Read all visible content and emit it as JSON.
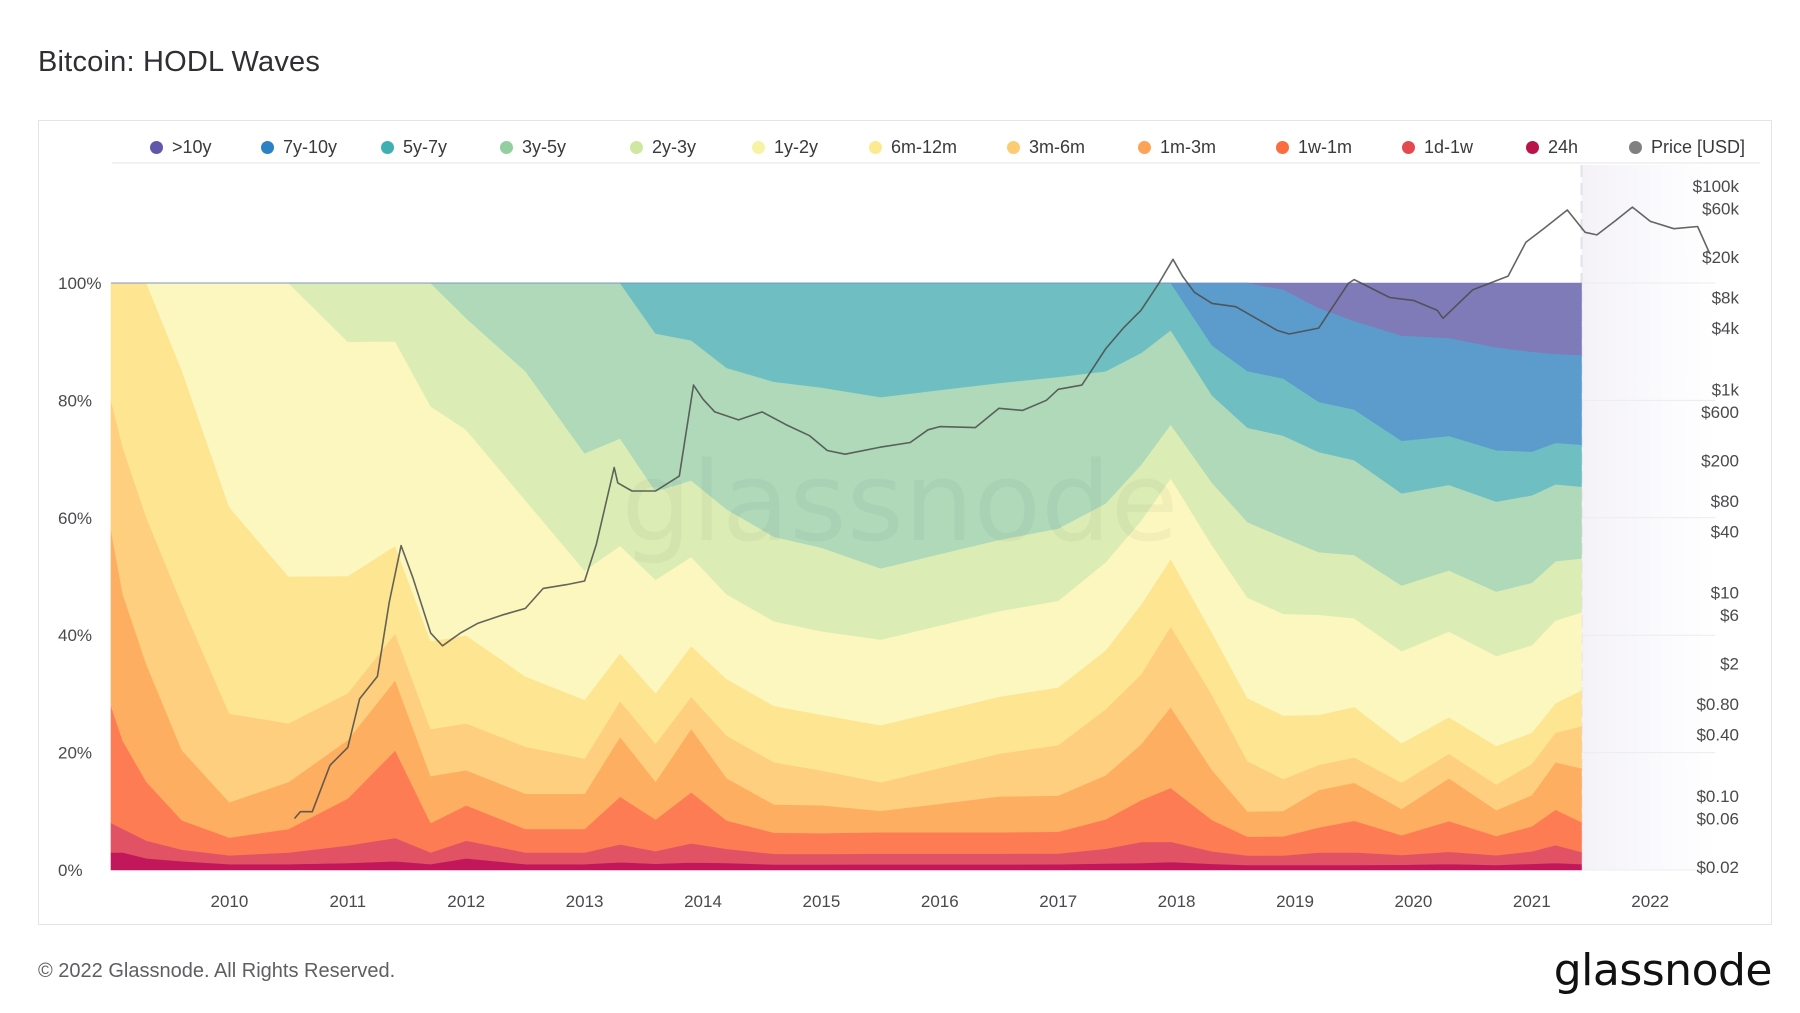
{
  "page": {
    "title": "Bitcoin: HODL Waves",
    "copyright": "© 2022 Glassnode. All Rights Reserved.",
    "brand": "glassnode",
    "watermark": "glassnode"
  },
  "chart_data": {
    "type": "area",
    "stacked": true,
    "normalized": true,
    "title": "Bitcoin: HODL Waves",
    "xlabel": "",
    "ylabel": "",
    "y2label": "Price [USD]",
    "x_ticks": [
      "2010",
      "2011",
      "2012",
      "2013",
      "2014",
      "2015",
      "2016",
      "2017",
      "2018",
      "2019",
      "2020",
      "2021",
      "2022"
    ],
    "x_range": [
      2009.0,
      2022.55
    ],
    "y_ticks": [
      "0%",
      "20%",
      "40%",
      "60%",
      "80%",
      "100%"
    ],
    "y_range": [
      0,
      100
    ],
    "y2_ticks": [
      "$0.02",
      "$0.06",
      "$0.10",
      "$0.40",
      "$0.80",
      "$2",
      "$6",
      "$10",
      "$40",
      "$80",
      "$200",
      "$600",
      "$1k",
      "$4k",
      "$8k",
      "$20k",
      "$60k",
      "$100k"
    ],
    "y2_scale": "log",
    "y2_range": [
      0.02,
      100000
    ],
    "legend_position": "top",
    "grid": true,
    "data_end_x": 2021.42,
    "x": [
      2009.0,
      2009.1,
      2009.3,
      2009.6,
      2010.0,
      2010.5,
      2011.0,
      2011.4,
      2011.7,
      2012.0,
      2012.5,
      2013.0,
      2013.3,
      2013.6,
      2013.9,
      2014.2,
      2014.6,
      2015.0,
      2015.5,
      2016.0,
      2016.5,
      2017.0,
      2017.4,
      2017.7,
      2017.95,
      2018.3,
      2018.6,
      2018.9,
      2019.2,
      2019.5,
      2019.9,
      2020.3,
      2020.7,
      2021.0,
      2021.2,
      2021.42
    ],
    "series": [
      {
        "name": "24h",
        "color": "#c2185b",
        "values": [
          3,
          3,
          2,
          1.5,
          1,
          1,
          1.2,
          1.5,
          1,
          2,
          1,
          1,
          1.3,
          1,
          1.2,
          1,
          0.8,
          0.8,
          0.8,
          0.8,
          0.8,
          0.8,
          0.9,
          1,
          1.2,
          1,
          0.8,
          0.8,
          0.8,
          0.8,
          0.8,
          1,
          0.8,
          1,
          1.2,
          1
        ]
      },
      {
        "name": "1d-1w",
        "color": "#e15364",
        "values": [
          5,
          4,
          3,
          2,
          1.5,
          2,
          3,
          4,
          2,
          3,
          2,
          2,
          3,
          2,
          3,
          2,
          1.5,
          1.5,
          1.5,
          1.5,
          1.5,
          1.5,
          2,
          3,
          3,
          2,
          1.5,
          1.5,
          2,
          2,
          1.5,
          2,
          1.5,
          2,
          3,
          2
        ]
      },
      {
        "name": "1w-1m",
        "color": "#fd7c54",
        "values": [
          20,
          15,
          10,
          5,
          3,
          4,
          8,
          15,
          5,
          6,
          4,
          4,
          8,
          5,
          8,
          4,
          3,
          3,
          3,
          3,
          3,
          3,
          4,
          6,
          8,
          5,
          3,
          3,
          4,
          5,
          3,
          5,
          3,
          4,
          6,
          5
        ]
      },
      {
        "name": "1m-3m",
        "color": "#fdae61",
        "values": [
          30,
          25,
          20,
          12,
          6,
          8,
          10,
          12,
          8,
          6,
          6,
          6,
          10,
          6,
          10,
          6,
          4,
          4,
          3,
          4,
          5,
          5,
          6,
          8,
          12,
          8,
          4,
          4,
          6,
          6,
          4,
          7,
          4,
          5,
          8,
          9
        ]
      },
      {
        "name": "3m-6m",
        "color": "#fdcf7e",
        "values": [
          22,
          25,
          25,
          25,
          15,
          10,
          8,
          8,
          8,
          8,
          8,
          6,
          6,
          6,
          5,
          6,
          6,
          5,
          4,
          5,
          6,
          7,
          9,
          10,
          12,
          12,
          8,
          5,
          4,
          4,
          4,
          4,
          4,
          5,
          5,
          7
        ]
      },
      {
        "name": "6m-12m",
        "color": "#fee591",
        "values": [
          20,
          28,
          40,
          40,
          35,
          25,
          20,
          15,
          15,
          15,
          12,
          10,
          8,
          8,
          8,
          8,
          8,
          8,
          8,
          8,
          8,
          8,
          8,
          10,
          10,
          10,
          10,
          10,
          8,
          8,
          6,
          6,
          6,
          5,
          5,
          6
        ]
      },
      {
        "name": "1y-2y",
        "color": "#fbf7be",
        "values": [
          0,
          0,
          0,
          15,
          38,
          50,
          40,
          35,
          40,
          35,
          30,
          22,
          18,
          18,
          14,
          12,
          12,
          12,
          12,
          12,
          12,
          12,
          12,
          12,
          12,
          14,
          16,
          16,
          16,
          14,
          14,
          14,
          14,
          14,
          14,
          13
        ]
      },
      {
        "name": "2y-3y",
        "color": "#dbedb5",
        "values": [
          0,
          0,
          0,
          0,
          0,
          0,
          10,
          10,
          21,
          19,
          22,
          20,
          18,
          14,
          12,
          12,
          12,
          12,
          10,
          10,
          10,
          10,
          8,
          8,
          8,
          10,
          12,
          12,
          10,
          10,
          10,
          10,
          10,
          10,
          10,
          9
        ]
      },
      {
        "name": "3y-5y",
        "color": "#b0d9ba",
        "values": [
          0,
          0,
          0,
          0,
          0,
          0,
          0,
          0,
          0,
          6,
          15,
          29,
          26,
          25,
          22,
          20,
          22,
          23,
          24,
          23,
          22,
          21,
          18,
          16,
          14,
          14,
          15,
          16,
          16,
          15,
          14,
          14,
          14,
          14,
          13,
          12
        ]
      },
      {
        "name": "5y-7y",
        "color": "#6fbfc2",
        "values": [
          0,
          0,
          0,
          0,
          0,
          0,
          0,
          0,
          0,
          0,
          0,
          0,
          0,
          8,
          9,
          12,
          14,
          15,
          16,
          15,
          14,
          13,
          12,
          10,
          7,
          8,
          9,
          9,
          8,
          8,
          8,
          8,
          8,
          7,
          7,
          7
        ]
      },
      {
        "name": "7y-10y",
        "color": "#5c9ccd",
        "values": [
          0,
          0,
          0,
          0,
          0,
          0,
          0,
          0,
          0,
          0,
          0,
          0,
          0,
          0,
          0,
          0,
          0,
          0,
          0,
          0,
          0,
          0,
          0,
          0,
          0,
          10,
          14,
          14,
          15,
          14,
          16,
          16,
          16,
          16,
          15,
          15
        ]
      },
      {
        "name": "Price [USD]",
        "color": "#6e6e72",
        "axis": "right",
        "type": "line",
        "x": [
          2010.55,
          2010.6,
          2010.7,
          2010.85,
          2011.0,
          2011.1,
          2011.25,
          2011.35,
          2011.45,
          2011.55,
          2011.7,
          2011.8,
          2011.95,
          2012.1,
          2012.3,
          2012.5,
          2012.65,
          2012.85,
          2013.0,
          2013.1,
          2013.25,
          2013.28,
          2013.4,
          2013.6,
          2013.8,
          2013.92,
          2014.0,
          2014.1,
          2014.3,
          2014.5,
          2014.7,
          2014.9,
          2015.05,
          2015.2,
          2015.5,
          2015.75,
          2015.9,
          2016.0,
          2016.3,
          2016.5,
          2016.7,
          2016.9,
          2017.0,
          2017.2,
          2017.4,
          2017.55,
          2017.7,
          2017.85,
          2017.97,
          2018.05,
          2018.15,
          2018.3,
          2018.5,
          2018.85,
          2018.95,
          2019.2,
          2019.45,
          2019.5,
          2019.8,
          2020.0,
          2020.2,
          2020.25,
          2020.5,
          2020.8,
          2020.95,
          2021.1,
          2021.3,
          2021.45,
          2021.55,
          2021.7,
          2021.85,
          2022.0,
          2022.2,
          2022.4,
          2022.5
        ],
        "values": [
          0.06,
          0.07,
          0.07,
          0.2,
          0.3,
          0.9,
          1.5,
          8,
          29,
          14,
          4,
          3,
          4,
          5,
          6,
          7,
          11,
          12,
          13,
          30,
          170,
          120,
          100,
          100,
          140,
          1100,
          800,
          600,
          500,
          600,
          450,
          350,
          250,
          230,
          270,
          300,
          400,
          430,
          420,
          650,
          620,
          780,
          1000,
          1100,
          2500,
          4000,
          6000,
          11000,
          19000,
          13000,
          9000,
          7000,
          6500,
          3800,
          3500,
          4000,
          11000,
          12000,
          8000,
          7500,
          6000,
          5000,
          9500,
          13000,
          28000,
          38000,
          58000,
          35000,
          33000,
          45000,
          62000,
          45000,
          38000,
          40000,
          22000
        ]
      },
      {
        "name": ">10y",
        "color": "#7f7bb9",
        "values": [
          0,
          0,
          0,
          0,
          0,
          0,
          0,
          0,
          0,
          0,
          0,
          0,
          0,
          0,
          0,
          0,
          0,
          0,
          0,
          0,
          0,
          0,
          0,
          0,
          0,
          0,
          0,
          1,
          4,
          6,
          8,
          9,
          10,
          11,
          12,
          12
        ]
      }
    ],
    "legend": [
      ">10y",
      "7y-10y",
      "5y-7y",
      "3y-5y",
      "2y-3y",
      "1y-2y",
      "6m-12m",
      "3m-6m",
      "1m-3m",
      "1w-1m",
      "1d-1w",
      "24h",
      "Price [USD]"
    ]
  },
  "legend_colors": {
    ">10y": "#6056aa",
    "7y-10y": "#2a82c4",
    "5y-7y": "#3fb0b1",
    "3y-5y": "#92ce9f",
    "2y-3y": "#cfe8a1",
    "1y-2y": "#f7f3a5",
    "6m-12m": "#fde98f",
    "3m-6m": "#fdcb73",
    "1m-3m": "#fca456",
    "1w-1m": "#fb6c3e",
    "1d-1w": "#e24a4f",
    "24h": "#b8144a",
    "Price [USD]": "#808083"
  }
}
